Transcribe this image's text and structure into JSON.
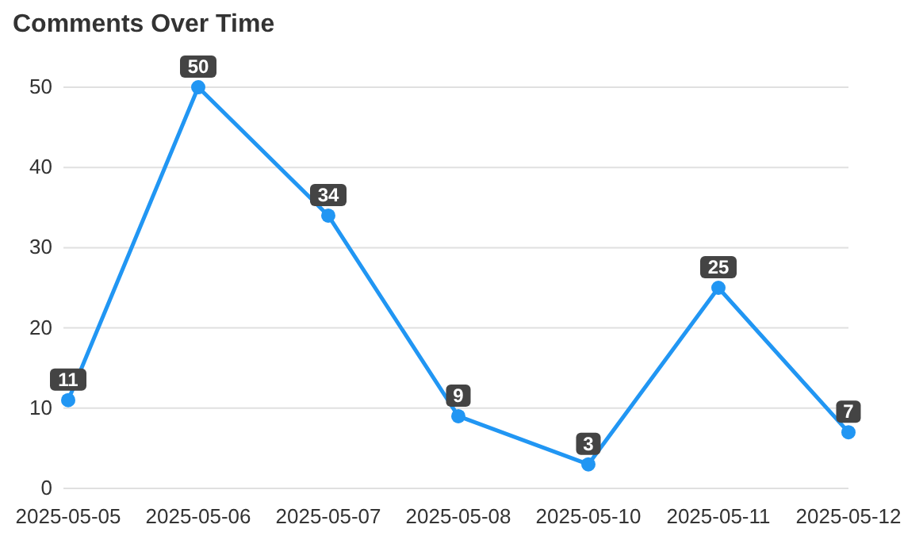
{
  "chart_data": {
    "type": "line",
    "title": "Comments Over Time",
    "categories": [
      "2025-05-05",
      "2025-05-06",
      "2025-05-07",
      "2025-05-08",
      "2025-05-10",
      "2025-05-11",
      "2025-05-12"
    ],
    "series": [
      {
        "color": "#2196f3",
        "values": [
          11,
          50,
          34,
          9,
          3,
          25,
          7
        ]
      }
    ],
    "ylim": [
      0,
      50
    ],
    "yticks": [
      0,
      10,
      20,
      30,
      40,
      50
    ],
    "grid": "y",
    "marker": "circle",
    "line_style": "solid",
    "data_labels": true
  }
}
